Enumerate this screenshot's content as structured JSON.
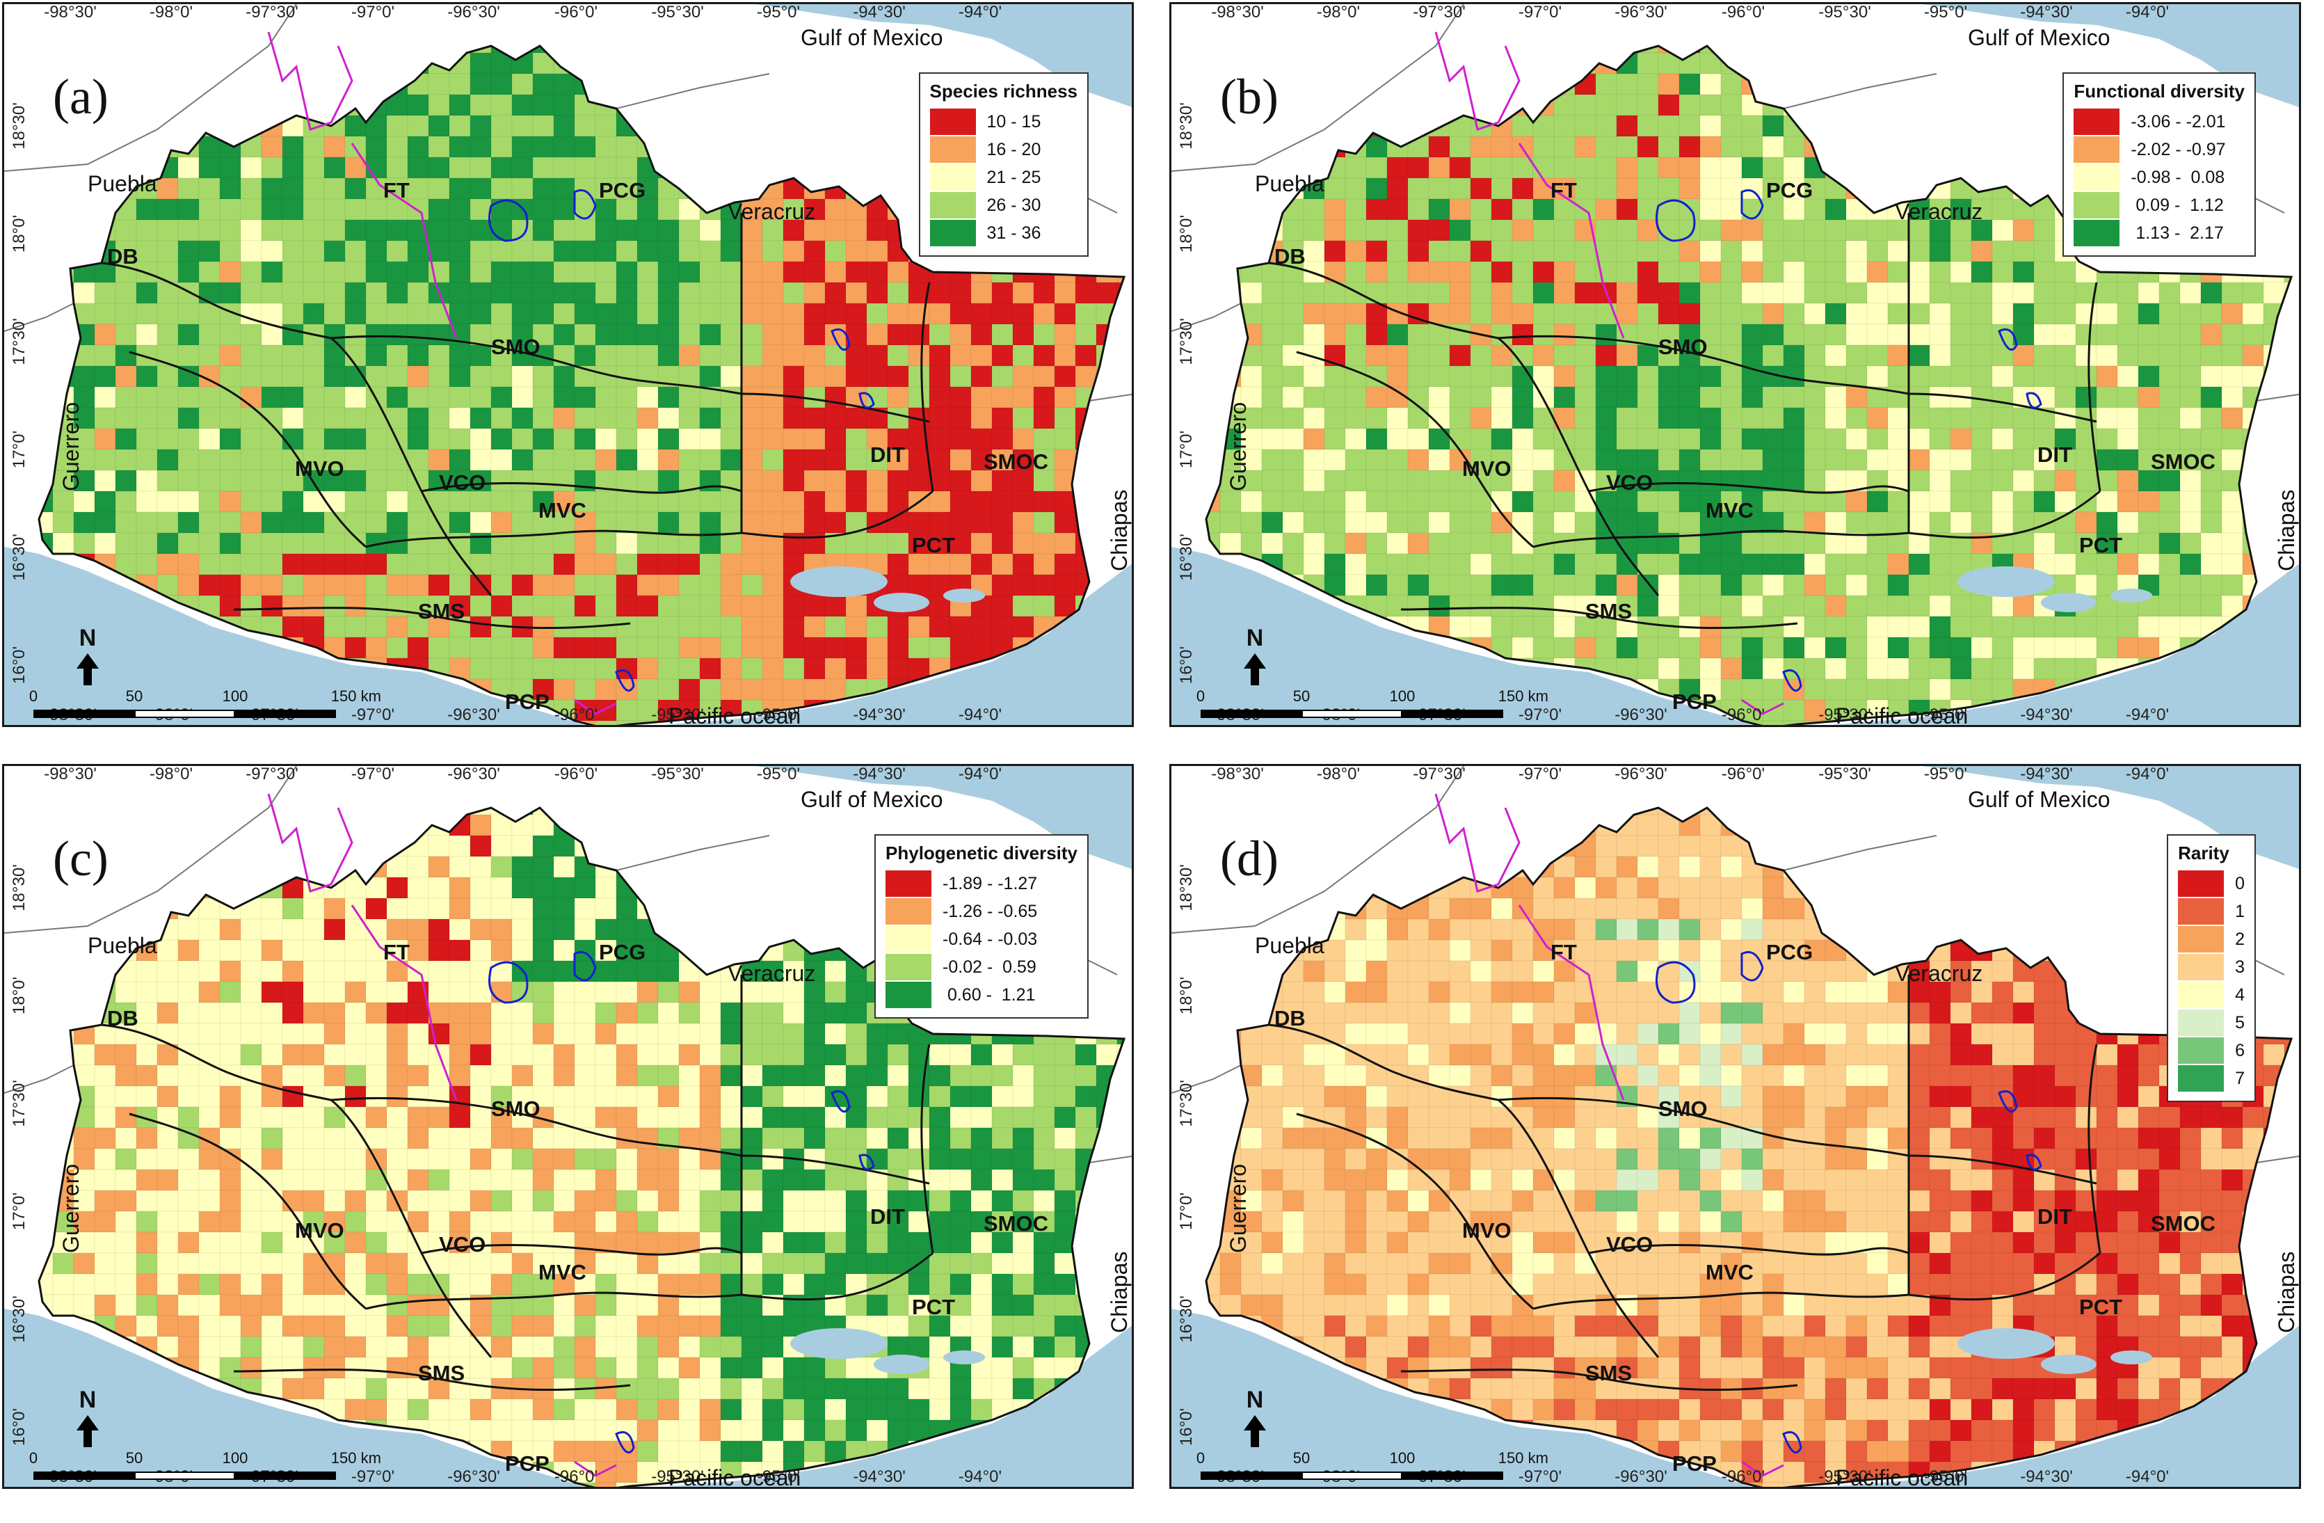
{
  "lon_ticks": [
    "-98°30'",
    "-98°0'",
    "-97°30'",
    "-97°0'",
    "-96°30'",
    "-96°0'",
    "-95°30'",
    "-95°0'",
    "-94°30'",
    "-94°0'"
  ],
  "lat_ticks_left": [
    "18°30'",
    "18°0'",
    "17°30'",
    "17°0'",
    "16°30'",
    "16°0'"
  ],
  "lat_ticks_right": [
    "18°30'",
    "18°0'",
    "17°30'",
    "17°0'",
    "16°30'",
    "16°0'"
  ],
  "places": {
    "gulf": "Gulf of Mexico",
    "puebla": "Puebla",
    "veracruz": "Veracruz",
    "guerrero": "Guerrero",
    "chiapas": "Chiapas",
    "pacific": "Pacific ocean"
  },
  "regions": [
    "FT",
    "PCG",
    "DB",
    "SMO",
    "MVO",
    "VCO",
    "MVC",
    "DIT",
    "SMOC",
    "PCT",
    "SMS",
    "PCP"
  ],
  "north_label": "N",
  "scale": {
    "labels": [
      "0",
      "50",
      "100",
      "150 km"
    ]
  },
  "colors": {
    "ocean": "#a9cde0",
    "lagoon": "#a9cde0",
    "state_boundary": "#111111",
    "protected_area_blue": "#1020d0",
    "protected_area_magenta": "#d020d0",
    "grid_line": "#cccccc"
  },
  "panels": [
    {
      "letter": "(a)",
      "legend_title": "Species richness",
      "legend": [
        {
          "label": "10 - 15",
          "color": "#d7191c"
        },
        {
          "label": "16 - 20",
          "color": "#f7a35c"
        },
        {
          "label": "21 - 25",
          "color": "#ffffbf"
        },
        {
          "label": "26 - 30",
          "color": "#a6d96a"
        },
        {
          "label": "31 - 36",
          "color": "#1a9641"
        }
      ],
      "dominant_class": 3
    },
    {
      "letter": "(b)",
      "legend_title": "Functional diversity",
      "legend": [
        {
          "label": "-3.06 - -2.01",
          "color": "#d7191c"
        },
        {
          "label": "-2.02 - -0.97",
          "color": "#f7a35c"
        },
        {
          "label": "-0.98 -  0.08",
          "color": "#ffffbf"
        },
        {
          "label": " 0.09 -  1.12",
          "color": "#a6d96a"
        },
        {
          "label": " 1.13 -  2.17",
          "color": "#1a9641"
        }
      ],
      "dominant_class": 3
    },
    {
      "letter": "(c)",
      "legend_title": "Phylogenetic diversity",
      "legend": [
        {
          "label": "-1.89 - -1.27",
          "color": "#d7191c"
        },
        {
          "label": "-1.26 - -0.65",
          "color": "#f7a35c"
        },
        {
          "label": "-0.64 - -0.03",
          "color": "#ffffbf"
        },
        {
          "label": "-0.02 -  0.59",
          "color": "#a6d96a"
        },
        {
          "label": " 0.60 -  1.21",
          "color": "#1a9641"
        }
      ],
      "dominant_class": 2
    },
    {
      "letter": "(d)",
      "legend_title": "Rarity",
      "legend": [
        {
          "label": "0",
          "color": "#d7191c"
        },
        {
          "label": "1",
          "color": "#e8603e"
        },
        {
          "label": "2",
          "color": "#f7a35c"
        },
        {
          "label": "3",
          "color": "#fdd08e"
        },
        {
          "label": "4",
          "color": "#ffffc0"
        },
        {
          "label": "5",
          "color": "#d8efc8"
        },
        {
          "label": "6",
          "color": "#78c679"
        },
        {
          "label": "7",
          "color": "#31a354"
        }
      ],
      "dominant_class": 3
    }
  ]
}
